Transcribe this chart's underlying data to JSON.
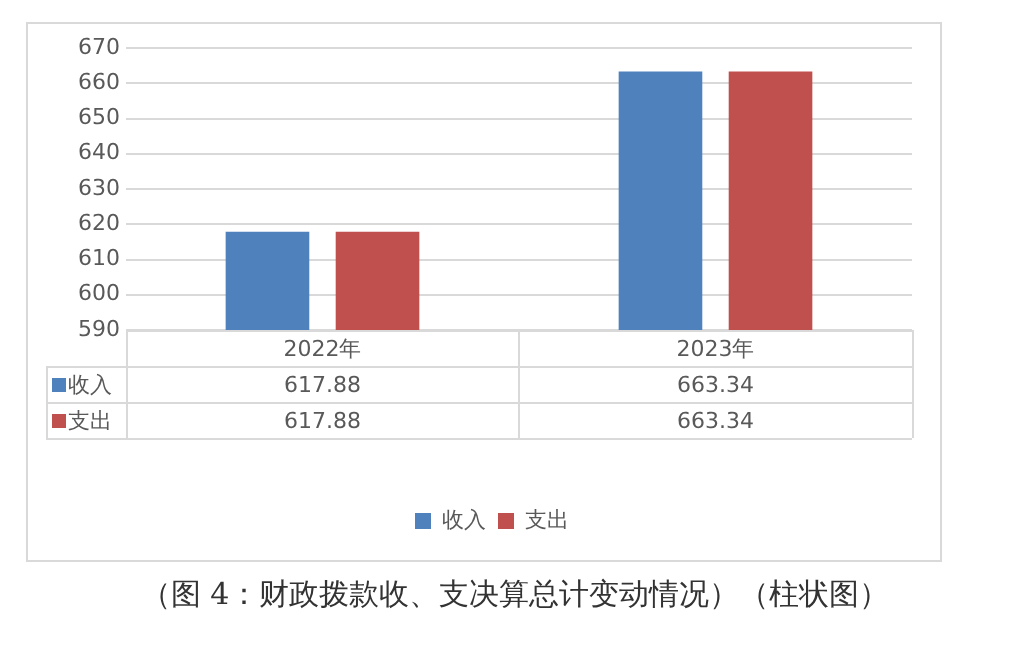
{
  "chart_data": {
    "type": "bar",
    "categories": [
      "2022年",
      "2023年"
    ],
    "series": [
      {
        "name": "收入",
        "color": "#4f81bd",
        "values": [
          617.88,
          663.34
        ]
      },
      {
        "name": "支出",
        "color": "#c0504d",
        "values": [
          617.88,
          663.34
        ]
      }
    ],
    "ylim": [
      590,
      670
    ],
    "yticks": [
      590,
      600,
      610,
      620,
      630,
      640,
      650,
      660,
      670
    ],
    "grid": "y",
    "legend": "bottom",
    "data_labels": true,
    "annotations": [
      "（图 4：财政拨款收、支决算总计变动情况）（柱状图）"
    ]
  }
}
